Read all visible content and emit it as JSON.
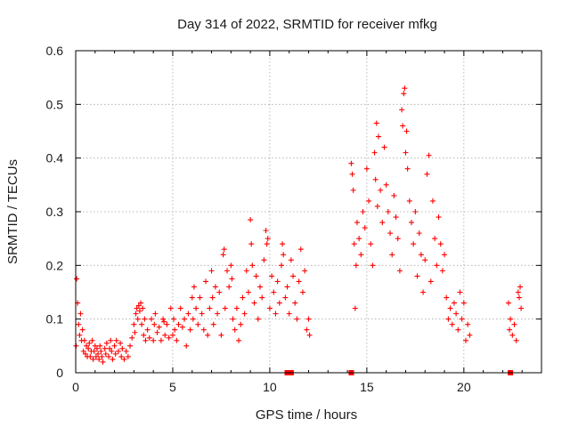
{
  "chart_data": {
    "type": "scatter",
    "title": "Day 314 of 2022, SRMTID for receiver mfkg",
    "xlabel": "GPS time / hours",
    "ylabel": "SRMTID / TECUs",
    "xlim": [
      0,
      24
    ],
    "ylim": [
      0,
      0.6
    ],
    "x_ticks": [
      0,
      5,
      10,
      15,
      20
    ],
    "x_tick_labels": [
      "0",
      "5",
      "10",
      "15",
      "20"
    ],
    "y_ticks": [
      0,
      0.1,
      0.2,
      0.3,
      0.4,
      0.5,
      0.6
    ],
    "y_tick_labels": [
      "0",
      "0.1",
      "0.2",
      "0.3",
      "0.4",
      "0.5",
      "0.6"
    ],
    "grid": true,
    "marker": "plus",
    "marker_color": "#ff0000",
    "series": [
      {
        "name": "SRMTID",
        "points": [
          [
            0.02,
            0.05
          ],
          [
            0.05,
            0.175
          ],
          [
            0.1,
            0.13
          ],
          [
            0.15,
            0.09
          ],
          [
            0.2,
            0.07
          ],
          [
            0.25,
            0.11
          ],
          [
            0.3,
            0.06
          ],
          [
            0.35,
            0.08
          ],
          [
            0.4,
            0.04
          ],
          [
            0.45,
            0.06
          ],
          [
            0.5,
            0.035
          ],
          [
            0.55,
            0.05
          ],
          [
            0.6,
            0.03
          ],
          [
            0.65,
            0.045
          ],
          [
            0.7,
            0.055
          ],
          [
            0.75,
            0.03
          ],
          [
            0.8,
            0.04
          ],
          [
            0.85,
            0.06
          ],
          [
            0.9,
            0.025
          ],
          [
            0.95,
            0.04
          ],
          [
            1.0,
            0.05
          ],
          [
            1.05,
            0.03
          ],
          [
            1.1,
            0.045
          ],
          [
            1.15,
            0.035
          ],
          [
            1.2,
            0.025
          ],
          [
            1.25,
            0.05
          ],
          [
            1.3,
            0.04
          ],
          [
            1.35,
            0.03
          ],
          [
            1.4,
            0.02
          ],
          [
            1.5,
            0.045
          ],
          [
            1.55,
            0.035
          ],
          [
            1.6,
            0.055
          ],
          [
            1.7,
            0.03
          ],
          [
            1.75,
            0.045
          ],
          [
            1.8,
            0.06
          ],
          [
            1.85,
            0.04
          ],
          [
            1.9,
            0.025
          ],
          [
            2.0,
            0.05
          ],
          [
            2.05,
            0.035
          ],
          [
            2.1,
            0.06
          ],
          [
            2.2,
            0.04
          ],
          [
            2.3,
            0.055
          ],
          [
            2.35,
            0.03
          ],
          [
            2.4,
            0.045
          ],
          [
            2.5,
            0.025
          ],
          [
            2.6,
            0.04
          ],
          [
            2.7,
            0.03
          ],
          [
            2.8,
            0.05
          ],
          [
            2.9,
            0.065
          ],
          [
            3.0,
            0.09
          ],
          [
            3.05,
            0.075
          ],
          [
            3.1,
            0.11
          ],
          [
            3.15,
            0.12
          ],
          [
            3.2,
            0.1
          ],
          [
            3.25,
            0.125
          ],
          [
            3.3,
            0.115
          ],
          [
            3.35,
            0.13
          ],
          [
            3.4,
            0.09
          ],
          [
            3.45,
            0.12
          ],
          [
            3.5,
            0.07
          ],
          [
            3.55,
            0.1
          ],
          [
            3.6,
            0.06
          ],
          [
            3.7,
            0.08
          ],
          [
            3.8,
            0.065
          ],
          [
            3.9,
            0.1
          ],
          [
            4.0,
            0.06
          ],
          [
            4.05,
            0.09
          ],
          [
            4.1,
            0.11
          ],
          [
            4.2,
            0.075
          ],
          [
            4.3,
            0.085
          ],
          [
            4.4,
            0.06
          ],
          [
            4.5,
            0.1
          ],
          [
            4.55,
            0.095
          ],
          [
            4.6,
            0.07
          ],
          [
            4.7,
            0.09
          ],
          [
            4.8,
            0.065
          ],
          [
            4.9,
            0.12
          ],
          [
            5.0,
            0.07
          ],
          [
            5.05,
            0.1
          ],
          [
            5.1,
            0.08
          ],
          [
            5.2,
            0.06
          ],
          [
            5.3,
            0.09
          ],
          [
            5.4,
            0.12
          ],
          [
            5.5,
            0.085
          ],
          [
            5.6,
            0.1
          ],
          [
            5.7,
            0.05
          ],
          [
            5.8,
            0.11
          ],
          [
            5.9,
            0.08
          ],
          [
            6.0,
            0.14
          ],
          [
            6.05,
            0.1
          ],
          [
            6.1,
            0.16
          ],
          [
            6.2,
            0.12
          ],
          [
            6.3,
            0.09
          ],
          [
            6.4,
            0.14
          ],
          [
            6.5,
            0.11
          ],
          [
            6.6,
            0.08
          ],
          [
            6.7,
            0.17
          ],
          [
            6.8,
            0.07
          ],
          [
            6.9,
            0.12
          ],
          [
            7.0,
            0.19
          ],
          [
            7.05,
            0.14
          ],
          [
            7.1,
            0.09
          ],
          [
            7.2,
            0.16
          ],
          [
            7.3,
            0.11
          ],
          [
            7.4,
            0.15
          ],
          [
            7.5,
            0.07
          ],
          [
            7.6,
            0.22
          ],
          [
            7.65,
            0.23
          ],
          [
            7.7,
            0.12
          ],
          [
            7.8,
            0.19
          ],
          [
            7.9,
            0.16
          ],
          [
            8.0,
            0.2
          ],
          [
            8.05,
            0.175
          ],
          [
            8.1,
            0.1
          ],
          [
            8.2,
            0.08
          ],
          [
            8.3,
            0.12
          ],
          [
            8.4,
            0.06
          ],
          [
            8.5,
            0.09
          ],
          [
            8.6,
            0.14
          ],
          [
            8.7,
            0.11
          ],
          [
            8.8,
            0.19
          ],
          [
            8.9,
            0.15
          ],
          [
            9.0,
            0.285
          ],
          [
            9.05,
            0.24
          ],
          [
            9.1,
            0.2
          ],
          [
            9.2,
            0.13
          ],
          [
            9.3,
            0.18
          ],
          [
            9.4,
            0.1
          ],
          [
            9.5,
            0.16
          ],
          [
            9.6,
            0.14
          ],
          [
            9.7,
            0.21
          ],
          [
            9.8,
            0.265
          ],
          [
            9.85,
            0.24
          ],
          [
            9.9,
            0.25
          ],
          [
            10.0,
            0.12
          ],
          [
            10.1,
            0.18
          ],
          [
            10.2,
            0.15
          ],
          [
            10.3,
            0.11
          ],
          [
            10.4,
            0.17
          ],
          [
            10.5,
            0.13
          ],
          [
            10.6,
            0.2
          ],
          [
            10.65,
            0.24
          ],
          [
            10.7,
            0.22
          ],
          [
            10.8,
            0.14
          ],
          [
            10.9,
            0.16
          ],
          [
            11.0,
            0.11
          ],
          [
            11.1,
            0.21
          ],
          [
            11.2,
            0.18
          ],
          [
            11.3,
            0.13
          ],
          [
            11.4,
            0.1
          ],
          [
            11.5,
            0.17
          ],
          [
            11.6,
            0.23
          ],
          [
            11.7,
            0.15
          ],
          [
            11.8,
            0.19
          ],
          [
            11.9,
            0.08
          ],
          [
            12.0,
            0.1
          ],
          [
            12.05,
            0.07
          ],
          [
            14.2,
            0.39
          ],
          [
            14.25,
            0.37
          ],
          [
            14.3,
            0.34
          ],
          [
            14.35,
            0.24
          ],
          [
            14.4,
            0.12
          ],
          [
            14.45,
            0.2
          ],
          [
            14.5,
            0.28
          ],
          [
            14.6,
            0.25
          ],
          [
            14.7,
            0.22
          ],
          [
            14.8,
            0.3
          ],
          [
            14.9,
            0.27
          ],
          [
            15.0,
            0.38
          ],
          [
            15.1,
            0.32
          ],
          [
            15.2,
            0.24
          ],
          [
            15.3,
            0.2
          ],
          [
            15.4,
            0.41
          ],
          [
            15.45,
            0.36
          ],
          [
            15.5,
            0.465
          ],
          [
            15.55,
            0.31
          ],
          [
            15.6,
            0.44
          ],
          [
            15.7,
            0.34
          ],
          [
            15.8,
            0.28
          ],
          [
            15.9,
            0.42
          ],
          [
            16.0,
            0.35
          ],
          [
            16.1,
            0.3
          ],
          [
            16.2,
            0.26
          ],
          [
            16.3,
            0.22
          ],
          [
            16.4,
            0.33
          ],
          [
            16.5,
            0.29
          ],
          [
            16.6,
            0.25
          ],
          [
            16.7,
            0.19
          ],
          [
            16.8,
            0.49
          ],
          [
            16.85,
            0.46
          ],
          [
            16.9,
            0.52
          ],
          [
            16.95,
            0.53
          ],
          [
            17.0,
            0.41
          ],
          [
            17.05,
            0.45
          ],
          [
            17.1,
            0.38
          ],
          [
            17.2,
            0.32
          ],
          [
            17.3,
            0.28
          ],
          [
            17.4,
            0.24
          ],
          [
            17.5,
            0.3
          ],
          [
            17.6,
            0.18
          ],
          [
            17.7,
            0.26
          ],
          [
            17.8,
            0.22
          ],
          [
            17.9,
            0.15
          ],
          [
            18.0,
            0.21
          ],
          [
            18.1,
            0.37
          ],
          [
            18.2,
            0.405
          ],
          [
            18.3,
            0.17
          ],
          [
            18.4,
            0.32
          ],
          [
            18.5,
            0.25
          ],
          [
            18.6,
            0.2
          ],
          [
            18.7,
            0.29
          ],
          [
            18.8,
            0.24
          ],
          [
            18.9,
            0.19
          ],
          [
            19.0,
            0.22
          ],
          [
            19.1,
            0.14
          ],
          [
            19.2,
            0.1
          ],
          [
            19.3,
            0.12
          ],
          [
            19.4,
            0.09
          ],
          [
            19.5,
            0.13
          ],
          [
            19.6,
            0.11
          ],
          [
            19.7,
            0.08
          ],
          [
            19.8,
            0.15
          ],
          [
            19.9,
            0.1
          ],
          [
            20.0,
            0.13
          ],
          [
            20.1,
            0.06
          ],
          [
            20.2,
            0.09
          ],
          [
            20.3,
            0.07
          ],
          [
            22.3,
            0.13
          ],
          [
            22.35,
            0.08
          ],
          [
            22.4,
            0.1
          ],
          [
            22.5,
            0.07
          ],
          [
            22.6,
            0.09
          ],
          [
            22.7,
            0.06
          ],
          [
            22.8,
            0.15
          ],
          [
            22.85,
            0.14
          ],
          [
            22.9,
            0.16
          ],
          [
            22.95,
            0.12
          ]
        ]
      }
    ],
    "zero_markers_x": [
      10.9,
      11.0,
      11.1,
      14.2,
      22.4
    ]
  }
}
